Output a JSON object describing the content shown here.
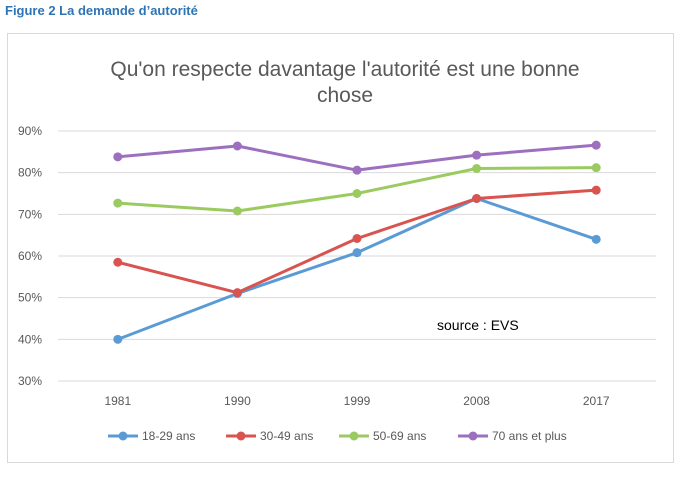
{
  "figure_caption": "Figure 2 La demande d’autorité",
  "chart_data": {
    "type": "line",
    "title_lines": [
      "Qu'on respecte davantage l'autorité est une bonne",
      "chose"
    ],
    "categories": [
      "1981",
      "1990",
      "1999",
      "2008",
      "2017"
    ],
    "ylim": [
      30,
      90
    ],
    "yticks": [
      "30%",
      "40%",
      "50%",
      "60%",
      "70%",
      "80%",
      "90%"
    ],
    "grid": true,
    "legend_position": "bottom",
    "annotation": "source : EVS",
    "series": [
      {
        "name": "18-29 ans",
        "color": "#5b9bd5",
        "values": [
          40,
          51,
          60.8,
          73.8,
          64
        ]
      },
      {
        "name": "30-49 ans",
        "color": "#d9534f",
        "values": [
          58.5,
          51.2,
          64.2,
          73.8,
          75.8
        ]
      },
      {
        "name": "50-69 ans",
        "color": "#9bcb60",
        "values": [
          72.7,
          70.8,
          75,
          81,
          81.2
        ]
      },
      {
        "name": "70 ans et plus",
        "color": "#9d6fbf",
        "values": [
          83.8,
          86.4,
          80.6,
          84.2,
          86.6
        ]
      }
    ]
  }
}
